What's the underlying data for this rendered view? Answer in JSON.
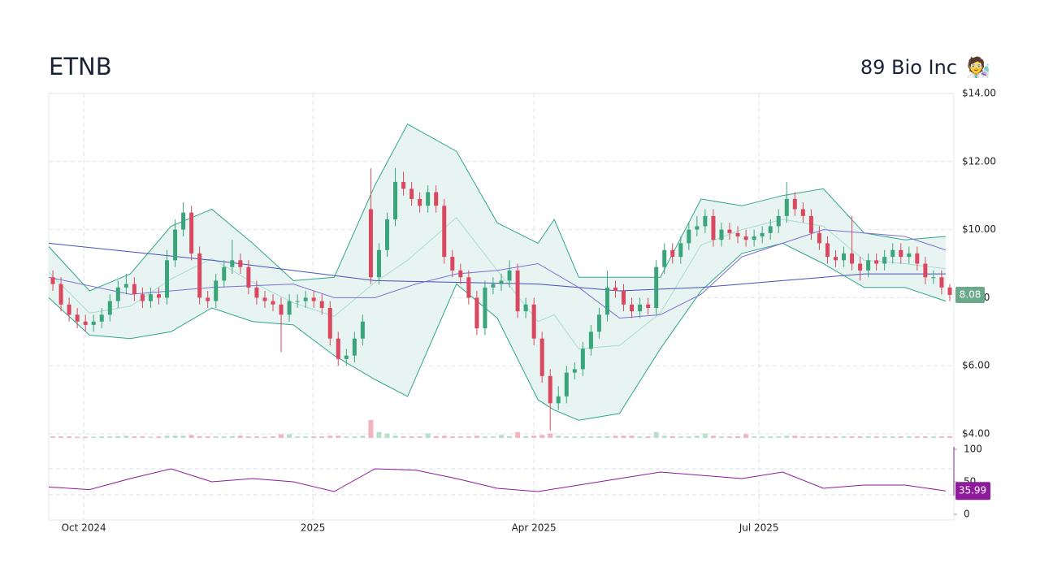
{
  "chart_data": {
    "type": "candlestick",
    "title": "ETNB",
    "subtitle": "89 Bio Inc",
    "icon": "🧑‍🔬",
    "up_color": "#3aa57a",
    "down_color": "#d9485f",
    "open": [
      8.6,
      8.4,
      7.8,
      7.5,
      7.3,
      7.2,
      7.3,
      7.5,
      7.9,
      8.3,
      8.4,
      8.1,
      7.9,
      8.1,
      8.0,
      9.1,
      10.0,
      10.5,
      9.3,
      8.0,
      7.9,
      8.5,
      8.9,
      9.1,
      8.9,
      8.3,
      8.0,
      7.9,
      7.8,
      7.5,
      7.9,
      7.9,
      8.0,
      7.9,
      7.7,
      6.8,
      6.2,
      6.3,
      6.8,
      10.6,
      8.6,
      9.4,
      10.3,
      11.4,
      11.2,
      10.9,
      10.7,
      11.1,
      10.7,
      9.2,
      8.8,
      8.6,
      8.0,
      7.1,
      8.3,
      8.4,
      8.5,
      8.8,
      7.6,
      7.8,
      6.8,
      5.7,
      4.9,
      5.1,
      5.8,
      5.9,
      6.5,
      7.0,
      7.5,
      8.3,
      8.2,
      7.8,
      7.6,
      7.8,
      7.7,
      8.9,
      9.4,
      9.2,
      9.6,
      10.0,
      10.1,
      10.4,
      9.7,
      10.0,
      9.9,
      9.8,
      9.7,
      9.8,
      9.9,
      10.1,
      10.4,
      10.9,
      10.6,
      10.4,
      9.9,
      9.6,
      9.2,
      9.1,
      9.3,
      9.0,
      8.8,
      9.1,
      9.0,
      9.2,
      9.4,
      9.2,
      9.3,
      9.0,
      8.6,
      8.6,
      8.3
    ],
    "high": [
      8.8,
      8.6,
      8.0,
      7.7,
      7.5,
      7.5,
      7.7,
      8.1,
      8.5,
      8.7,
      8.6,
      8.3,
      8.3,
      8.3,
      9.4,
      10.3,
      10.8,
      10.7,
      9.5,
      8.2,
      8.7,
      9.1,
      9.7,
      9.3,
      9.1,
      8.5,
      8.2,
      8.1,
      8.0,
      8.1,
      8.1,
      8.2,
      8.2,
      8.1,
      7.9,
      7.0,
      6.5,
      7.0,
      7.5,
      11.8,
      9.6,
      10.5,
      11.8,
      11.7,
      11.4,
      11.1,
      11.3,
      11.3,
      10.9,
      9.4,
      9.0,
      8.8,
      8.2,
      8.5,
      8.6,
      8.7,
      9.1,
      9.0,
      8.0,
      8.0,
      7.0,
      5.9,
      5.4,
      6.0,
      6.1,
      6.7,
      7.2,
      7.7,
      8.8,
      8.5,
      8.4,
      8.0,
      8.0,
      8.0,
      9.1,
      9.6,
      9.6,
      9.8,
      10.2,
      10.4,
      10.6,
      10.6,
      10.2,
      10.2,
      10.1,
      10.0,
      10.0,
      10.1,
      10.3,
      10.6,
      11.4,
      11.1,
      10.8,
      10.6,
      10.1,
      9.8,
      9.4,
      9.5,
      10.4,
      9.2,
      9.3,
      9.3,
      9.4,
      9.6,
      9.6,
      9.5,
      9.5,
      9.2,
      8.8,
      8.8,
      8.4
    ],
    "low": [
      8.2,
      7.6,
      7.3,
      7.1,
      7.0,
      7.0,
      7.1,
      7.3,
      7.7,
      8.1,
      7.9,
      7.7,
      7.7,
      7.8,
      7.8,
      8.9,
      9.8,
      9.1,
      7.8,
      7.7,
      7.7,
      8.3,
      8.7,
      8.7,
      8.1,
      7.8,
      7.7,
      7.6,
      6.4,
      7.3,
      7.7,
      7.7,
      7.7,
      7.5,
      6.6,
      6.0,
      6.0,
      6.1,
      6.6,
      8.4,
      8.4,
      9.2,
      10.1,
      11.0,
      10.7,
      10.5,
      10.5,
      10.5,
      9.0,
      8.6,
      8.4,
      7.8,
      6.9,
      6.9,
      8.1,
      8.2,
      8.3,
      7.4,
      7.4,
      6.6,
      5.5,
      4.1,
      4.7,
      4.9,
      5.6,
      5.7,
      6.3,
      6.8,
      7.3,
      8.0,
      7.6,
      7.4,
      7.4,
      7.5,
      7.5,
      8.7,
      9.0,
      9.0,
      9.4,
      9.8,
      9.9,
      9.5,
      9.5,
      9.7,
      9.6,
      9.5,
      9.5,
      9.6,
      9.7,
      9.9,
      10.2,
      10.4,
      10.2,
      9.7,
      9.4,
      9.0,
      8.9,
      8.9,
      8.8,
      8.5,
      8.6,
      8.8,
      8.8,
      9.0,
      9.0,
      9.0,
      8.8,
      8.4,
      8.4,
      8.1,
      7.9
    ],
    "close": [
      8.4,
      7.8,
      7.5,
      7.3,
      7.2,
      7.3,
      7.5,
      7.9,
      8.3,
      8.4,
      8.1,
      7.9,
      8.1,
      8.0,
      9.1,
      10.0,
      10.5,
      9.3,
      8.0,
      7.9,
      8.5,
      8.9,
      9.1,
      8.9,
      8.3,
      8.0,
      7.9,
      7.8,
      7.5,
      7.9,
      7.9,
      8.0,
      7.9,
      7.7,
      6.8,
      6.2,
      6.3,
      6.8,
      7.3,
      8.6,
      9.4,
      10.3,
      11.4,
      11.2,
      10.9,
      10.7,
      11.1,
      10.7,
      9.2,
      8.8,
      8.6,
      8.0,
      7.1,
      8.3,
      8.4,
      8.5,
      8.8,
      7.6,
      7.8,
      6.8,
      5.7,
      4.9,
      5.1,
      5.8,
      5.9,
      6.5,
      7.0,
      7.5,
      8.3,
      8.2,
      7.8,
      7.6,
      7.8,
      7.7,
      8.9,
      9.4,
      9.2,
      9.6,
      10.0,
      10.1,
      10.4,
      9.7,
      10.0,
      9.9,
      9.8,
      9.7,
      9.8,
      9.9,
      10.1,
      10.4,
      10.9,
      10.6,
      10.4,
      9.9,
      9.6,
      9.2,
      9.1,
      9.3,
      9.0,
      8.8,
      9.1,
      9.0,
      9.2,
      9.4,
      9.2,
      9.3,
      9.0,
      8.6,
      8.6,
      8.3,
      8.08
    ],
    "volume": [
      1,
      1,
      1,
      0.8,
      0.8,
      0.8,
      1,
      1,
      1.2,
      1.5,
      1,
      1,
      0.8,
      1,
      1.5,
      1.5,
      1.5,
      2,
      1.2,
      1,
      1,
      1,
      1.2,
      1.5,
      1,
      1,
      0.8,
      1,
      2.5,
      2.5,
      1,
      1,
      1,
      1,
      1.5,
      1.5,
      1,
      1,
      1.5,
      12,
      4,
      3,
      1.5,
      1,
      1,
      1,
      3,
      1.2,
      1.5,
      1,
      1,
      1,
      1.5,
      1,
      1,
      2,
      1.2,
      4,
      1.2,
      1.5,
      2,
      3,
      1.5,
      1,
      1,
      1,
      1,
      1,
      1.2,
      1.5,
      1.5,
      1.5,
      1,
      1,
      4,
      1.5,
      1.2,
      1,
      1,
      1.5,
      3,
      1.5,
      1,
      1,
      1.2,
      2.5,
      1,
      1,
      1,
      1,
      1.5,
      1.5,
      1,
      1,
      1,
      1,
      1,
      1,
      1,
      1,
      1.2,
      1,
      1,
      1,
      1,
      1,
      1,
      1,
      1,
      1,
      1.2
    ],
    "volume_color_up": "#b7e0cc",
    "volume_color_down": "#f1b5bf",
    "xlim": [
      0,
      111
    ],
    "xticks": [
      {
        "value": 4.3,
        "label": "Oct 2024"
      },
      {
        "value": 32.4,
        "label": "2025"
      },
      {
        "value": 59.5,
        "label": "Apr 2025"
      },
      {
        "value": 87.1,
        "label": "Jul 2025"
      }
    ],
    "ylim": [
      4,
      14
    ],
    "yticks": [
      {
        "value": 4,
        "label": "$4.00"
      },
      {
        "value": 6,
        "label": "$6.00"
      },
      {
        "value": 8,
        "label": "$8.00"
      },
      {
        "value": 10,
        "label": "$10.00"
      },
      {
        "value": 12,
        "label": "$12.00"
      },
      {
        "value": 14,
        "label": "$14.00"
      }
    ],
    "grid": true,
    "last_price_color": "#6aa98a",
    "bollinger": {
      "color": "#2fa58a",
      "fill": "#e8f4f2",
      "middle_color": "#a9dccf",
      "x": [
        0,
        5,
        10,
        15,
        20,
        25,
        30,
        35,
        40,
        44,
        50,
        55,
        60,
        62,
        65,
        70,
        75,
        80,
        85,
        90,
        95,
        100,
        105,
        110
      ],
      "upper": [
        9.5,
        8.2,
        8.7,
        10.1,
        10.6,
        9.6,
        8.5,
        8.6,
        11.3,
        13.1,
        12.3,
        10.2,
        9.6,
        10.3,
        8.6,
        8.6,
        8.6,
        10.9,
        10.7,
        11.0,
        11.2,
        9.9,
        9.7,
        9.8
      ],
      "middle": [
        8.75,
        7.55,
        7.75,
        8.55,
        9.15,
        8.45,
        7.85,
        7.45,
        8.45,
        9.1,
        10.35,
        8.8,
        7.3,
        7.5,
        6.5,
        6.6,
        7.55,
        9.55,
        10.0,
        10.3,
        10.1,
        9.1,
        9.0,
        8.85
      ],
      "lower": [
        8.0,
        6.9,
        6.8,
        7.0,
        7.7,
        7.3,
        7.2,
        6.3,
        5.6,
        5.1,
        8.4,
        7.4,
        5.0,
        4.7,
        4.4,
        4.6,
        6.5,
        8.2,
        9.3,
        9.6,
        9.0,
        8.3,
        8.3,
        7.9
      ]
    },
    "sma_short": {
      "color": "#7b6fd6",
      "x": [
        0,
        10,
        20,
        30,
        35,
        40,
        45,
        50,
        55,
        60,
        65,
        70,
        75,
        80,
        85,
        90,
        95,
        100,
        105,
        110
      ],
      "values": [
        8.6,
        8.1,
        8.3,
        8.4,
        8.0,
        8.0,
        8.4,
        8.7,
        8.8,
        9.0,
        8.3,
        7.4,
        7.5,
        8.1,
        9.2,
        9.6,
        10.0,
        9.9,
        9.8,
        9.4
      ]
    },
    "sma_long": {
      "color": "#4650b8",
      "x": [
        0,
        20,
        40,
        60,
        70,
        80,
        90,
        100,
        110
      ],
      "values": [
        9.6,
        9.1,
        8.5,
        8.4,
        8.2,
        8.3,
        8.5,
        8.7,
        8.7
      ]
    },
    "rsi": {
      "color": "#8e1a9c",
      "ylim": [
        0,
        100
      ],
      "yticks": [
        0,
        50,
        100
      ],
      "levels": [
        30,
        70
      ],
      "x": [
        0,
        5,
        10,
        15,
        20,
        25,
        30,
        35,
        40,
        45,
        50,
        55,
        60,
        65,
        70,
        75,
        80,
        85,
        90,
        95,
        100,
        105,
        110
      ],
      "values": [
        42,
        38,
        55,
        70,
        50,
        55,
        50,
        35,
        70,
        68,
        55,
        40,
        35,
        45,
        55,
        65,
        60,
        55,
        65,
        40,
        45,
        45,
        35.99
      ]
    }
  }
}
